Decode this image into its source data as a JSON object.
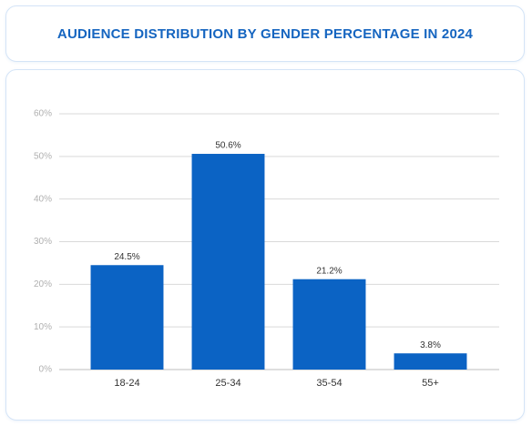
{
  "chart_data": {
    "type": "bar",
    "title": "AUDIENCE DISTRIBUTION BY GENDER PERCENTAGE IN 2024",
    "categories": [
      "18-24",
      "25-34",
      "35-54",
      "55+"
    ],
    "values": [
      24.5,
      50.6,
      21.2,
      3.8
    ],
    "value_labels": [
      "24.5%",
      "50.6%",
      "21.2%",
      "3.8%"
    ],
    "color": "#0b63c4",
    "ylim": [
      0,
      60
    ],
    "yticks": [
      {
        "value": 0,
        "label": "0%"
      },
      {
        "value": 10,
        "label": "10%"
      },
      {
        "value": 20,
        "label": "20%"
      },
      {
        "value": 30,
        "label": "30%"
      },
      {
        "value": 40,
        "label": "40%"
      },
      {
        "value": 50,
        "label": "50%"
      },
      {
        "value": 60,
        "label": "60%"
      }
    ],
    "grid": true
  }
}
